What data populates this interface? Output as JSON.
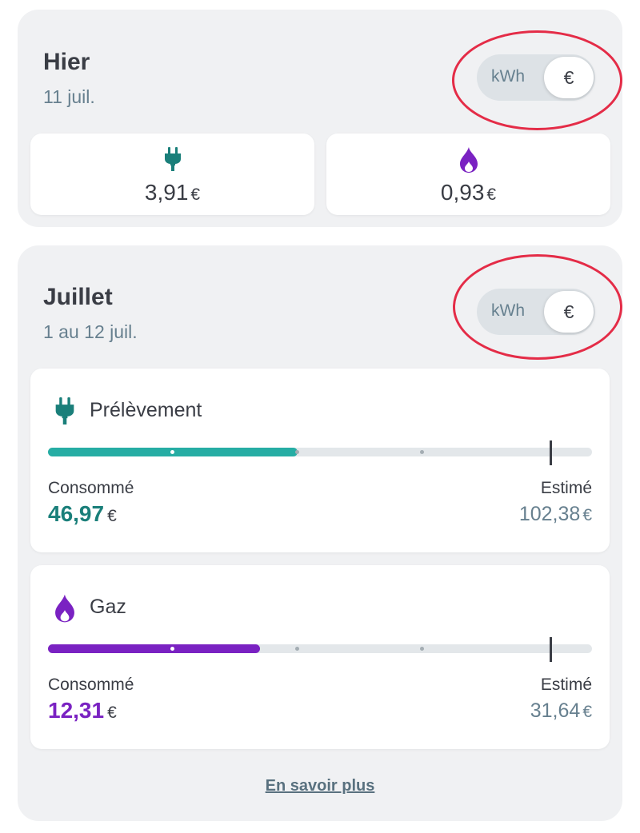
{
  "hier": {
    "title": "Hier",
    "subtitle": "11 juil.",
    "toggle": {
      "kwh_label": "kWh",
      "eur_label": "€",
      "selected": "€"
    },
    "electricity": {
      "icon": "plug-icon",
      "value": "3,91",
      "unit": "€"
    },
    "gas": {
      "icon": "flame-icon",
      "value": "0,93",
      "unit": "€"
    }
  },
  "juillet": {
    "title": "Juillet",
    "subtitle": "1 au 12 juil.",
    "toggle": {
      "kwh_label": "kWh",
      "eur_label": "€",
      "selected": "€"
    },
    "electricity": {
      "icon": "plug-icon",
      "title": "Prélèvement",
      "consumed_label": "Consommé",
      "consumed_value": "46,97",
      "estimated_label": "Estimé",
      "estimated_value": "102,38",
      "unit": "€",
      "progress_fraction": 0.4588
    },
    "gas": {
      "icon": "flame-icon",
      "title": "Gaz",
      "consumed_label": "Consommé",
      "consumed_value": "12,31",
      "estimated_label": "Estimé",
      "estimated_value": "31,64",
      "unit": "€",
      "progress_fraction": 0.389
    },
    "more_link": "En savoir plus"
  },
  "colors": {
    "electricity": "#26ada4",
    "electricity_text": "#1a7f7a",
    "gas": "#7a22c2",
    "highlight": "#e42c47"
  }
}
